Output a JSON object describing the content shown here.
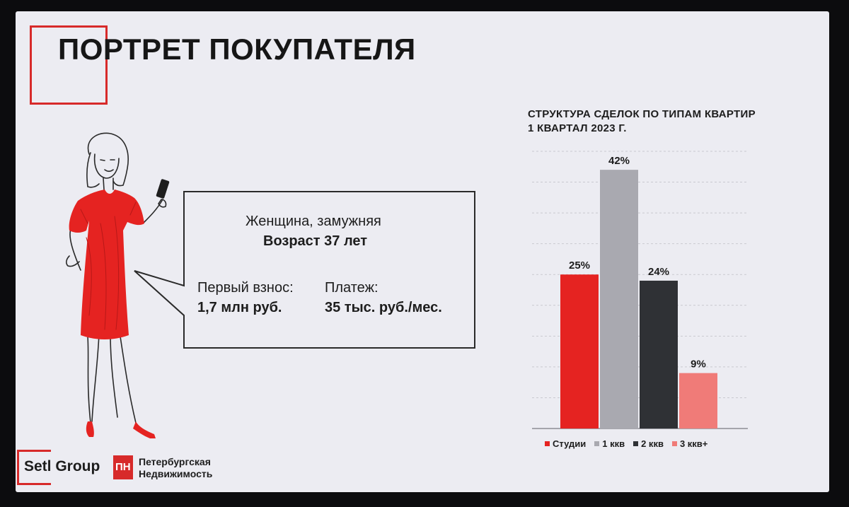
{
  "slide": {
    "title": "ПОРТРЕТ ПОКУПАТЕЛЯ"
  },
  "buyer": {
    "status": "Женщина, замужняя",
    "age": "Возраст 37 лет",
    "down_payment_label": "Первый взнос:",
    "down_payment_value": "1,7 млн руб.",
    "payment_label": "Платеж:",
    "payment_value": "35 тыс. руб./мес."
  },
  "chart_data": {
    "type": "bar",
    "title_lines": [
      "СТРУКТУРА СДЕЛОК ПО ТИПАМ КВАРТИР",
      "1 КВАРТАЛ 2023 Г."
    ],
    "categories": [
      "Студии",
      "1 ккв",
      "2 ккв",
      "3 ккв+"
    ],
    "values": [
      25,
      42,
      24,
      9
    ],
    "data_labels": [
      "25%",
      "42%",
      "24%",
      "9%"
    ],
    "colors": [
      "#e52321",
      "#a9a9b0",
      "#2f3135",
      "#f07b78"
    ],
    "ylim": [
      0,
      45
    ],
    "grid": true,
    "legend_position": "bottom"
  },
  "logos": {
    "setl_text": "Setl Group",
    "pn_mark": "ПН",
    "pn_line1": "Петербургская",
    "pn_line2": "Недвижимость"
  },
  "colors": {
    "accent": "#d72a2a",
    "slide_bg": "#ececf2"
  }
}
